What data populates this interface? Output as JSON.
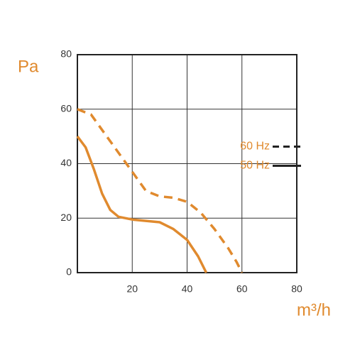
{
  "chart_data": {
    "type": "line",
    "xlabel": "m³/h",
    "ylabel": "Pa",
    "xlim": [
      0,
      80
    ],
    "ylim": [
      0,
      80
    ],
    "xticks": [
      20,
      40,
      60,
      80
    ],
    "yticks": [
      0,
      20,
      40,
      60,
      80
    ],
    "grid": true,
    "legend": "center right",
    "series": [
      {
        "name": "60 Hz",
        "color": "#e08a2e",
        "linestyle": "dashed",
        "x": [
          0,
          5,
          10,
          15,
          20,
          25,
          30,
          35,
          40,
          45,
          50,
          55,
          58,
          60
        ],
        "values": [
          60,
          58,
          51,
          44,
          37,
          30,
          28,
          27.5,
          26,
          22,
          16,
          9,
          4,
          0
        ]
      },
      {
        "name": "50 Hz",
        "color": "#e08a2e",
        "linestyle": "solid",
        "x": [
          0,
          3,
          6,
          9,
          12,
          15,
          20,
          25,
          30,
          35,
          40,
          44,
          47
        ],
        "values": [
          50,
          46,
          38,
          29,
          23,
          20.5,
          19.5,
          19,
          18.5,
          16,
          12,
          6,
          0
        ]
      }
    ]
  }
}
